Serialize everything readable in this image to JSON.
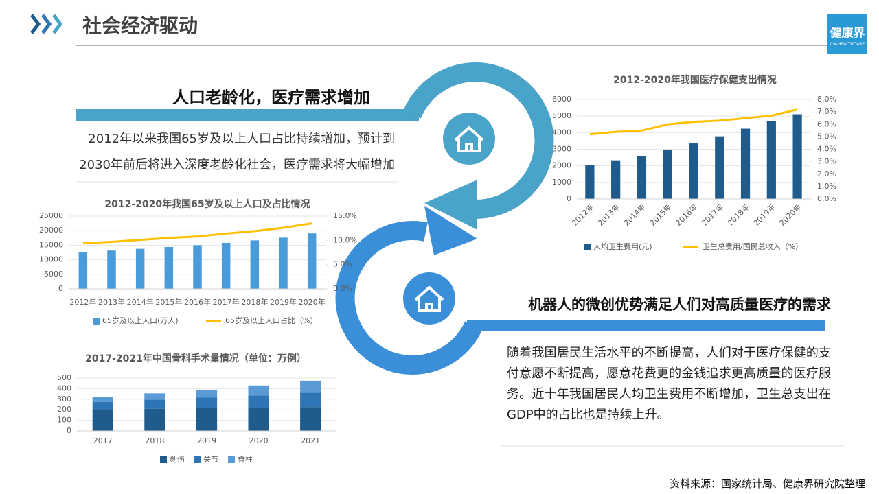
{
  "header": {
    "title": "社会经济驱动",
    "logo": "健康界",
    "logo_sub": "CN-HEALTHCARE"
  },
  "sections": [
    {
      "heading": "人口老龄化，医疗需求增加",
      "text": "2012年以来我国65岁及以上人口占比持续增加，预计到2030年前后将进入深度老龄化社会，医疗需求将大幅增加"
    },
    {
      "heading": "机器人的微创优势满足人们对高质量医疗的需求",
      "text": "随着我国居民生活水平的不断提高，人们对于医疗保健的支付意愿不断提高，愿意花费更的金钱追求更高质量的医疗服务。近十年我国居民人均卫生费用不断增加，卫生总支出在GDP中的占比也是持续上升。"
    }
  ],
  "chart_data": [
    {
      "type": "combo",
      "title": "2012-2020年我国医疗保健支出情况",
      "categories": [
        "2012年",
        "2013年",
        "2014年",
        "2015年",
        "2016年",
        "2017年",
        "2018年",
        "2019年",
        "2020年"
      ],
      "series": [
        {
          "name": "人均卫生费用(元)",
          "color": "#1f5c8b",
          "values": [
            2060,
            2330,
            2580,
            2980,
            3350,
            3780,
            4240,
            4700,
            5110
          ]
        },
        {
          "name": "卫生总费用/国民总收入（%）",
          "color": "#ffc000",
          "axis": "y2",
          "values": [
            5.2,
            5.4,
            5.5,
            6.0,
            6.2,
            6.3,
            6.5,
            6.7,
            7.2
          ]
        }
      ],
      "ylim": [
        0,
        6000
      ],
      "yticks": [
        0,
        1000,
        2000,
        3000,
        4000,
        5000,
        6000
      ],
      "y2lim": [
        0,
        8
      ],
      "y2ticks": [
        {
          "value": 0,
          "label": "0.0%"
        },
        {
          "value": 1,
          "label": "1.0%"
        },
        {
          "value": 2,
          "label": "2.0%"
        },
        {
          "value": 3,
          "label": "3.0%"
        },
        {
          "value": 4,
          "label": "4.0%"
        },
        {
          "value": 5,
          "label": "5.0%"
        },
        {
          "value": 6,
          "label": "6.0%"
        },
        {
          "value": 7,
          "label": "7.0%"
        },
        {
          "value": 8,
          "label": "8.0%"
        }
      ],
      "grid": true
    },
    {
      "type": "combo",
      "title": "2012-2020年我国65岁及以上人口及占比情况",
      "categories": [
        "2012年",
        "2013年",
        "2014年",
        "2015年",
        "2016年",
        "2017年",
        "2018年",
        "2019年",
        "2020年"
      ],
      "series": [
        {
          "name": "65岁及以上人口(万人)",
          "color": "#4a9bd9",
          "values": [
            12700,
            13160,
            13760,
            14390,
            15000,
            15830,
            16660,
            17600,
            19060
          ]
        },
        {
          "name": "65岁及以上人口占比（%）",
          "color": "#ffc000",
          "axis": "y2",
          "values": [
            9.4,
            9.7,
            10.1,
            10.5,
            10.8,
            11.4,
            11.9,
            12.6,
            13.5
          ]
        }
      ],
      "ylim": [
        0,
        25000
      ],
      "yticks": [
        0,
        5000,
        10000,
        15000,
        20000,
        25000
      ],
      "y2lim": [
        0,
        15
      ],
      "y2ticks": [
        {
          "value": 0,
          "label": "0.0%"
        },
        {
          "value": 5,
          "label": "5.0%"
        },
        {
          "value": 10,
          "label": "10.0%"
        },
        {
          "value": 15,
          "label": "15.0%"
        }
      ],
      "grid": true
    },
    {
      "type": "bar",
      "stacked": true,
      "title": "2017-2021年中国骨科手术量情况（单位：万例）",
      "categories": [
        "2017",
        "2018",
        "2019",
        "2020",
        "2021"
      ],
      "series": [
        {
          "name": "创伤",
          "color": "#1f5c8b",
          "values": [
            205,
            210,
            215,
            220,
            225
          ]
        },
        {
          "name": "关节",
          "color": "#2e75b6",
          "values": [
            70,
            85,
            100,
            115,
            135
          ]
        },
        {
          "name": "脊柱",
          "color": "#5b9bd5",
          "values": [
            45,
            60,
            75,
            95,
            115
          ]
        }
      ],
      "ylim": [
        0,
        500
      ],
      "yticks": [
        0,
        100,
        200,
        300,
        400,
        500
      ],
      "grid": true
    }
  ],
  "source": "资料来源：国家统计局、健康界研究院整理"
}
